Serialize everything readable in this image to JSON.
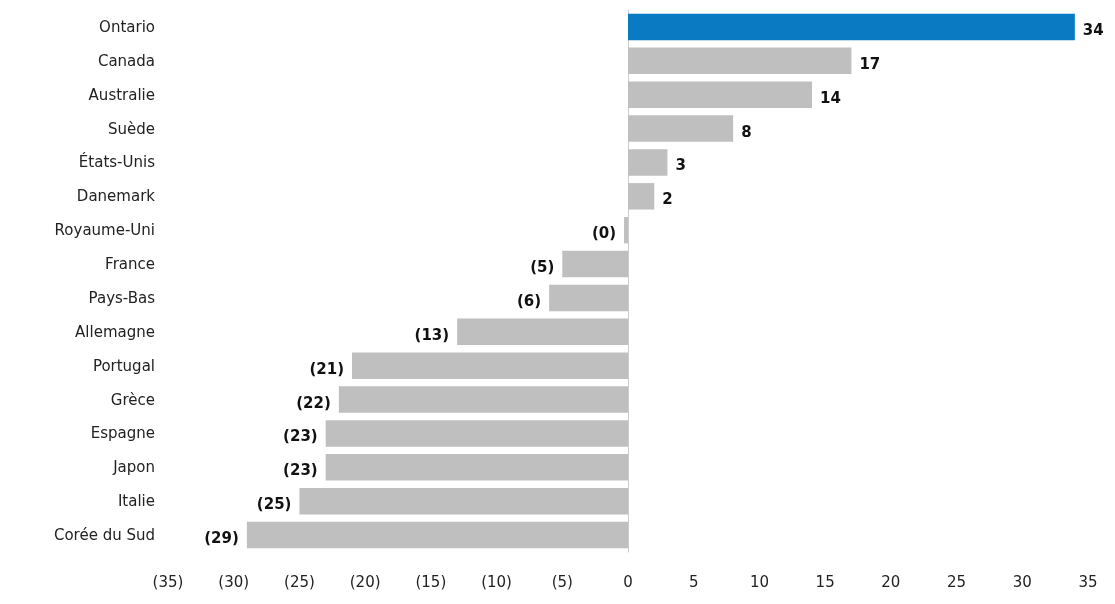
{
  "chart_data": {
    "type": "bar",
    "orientation": "horizontal",
    "categories": [
      "Ontario",
      "Canada",
      "Australie",
      "Suède",
      "États-Unis",
      "Danemark",
      "Royaume-Uni",
      "France",
      "Pays-Bas",
      "Allemagne",
      "Portugal",
      "Grèce",
      "Espagne",
      "Japon",
      "Italie",
      "Corée du Sud"
    ],
    "values": [
      34,
      17,
      14,
      8,
      3,
      2,
      -0.3,
      -5,
      -6,
      -13,
      -21,
      -22,
      -23,
      -23,
      -25,
      -29
    ],
    "colors": [
      "#0a7bc2",
      "#bfbfbf",
      "#bfbfbf",
      "#bfbfbf",
      "#bfbfbf",
      "#bfbfbf",
      "#bfbfbf",
      "#bfbfbf",
      "#bfbfbf",
      "#bfbfbf",
      "#bfbfbf",
      "#bfbfbf",
      "#bfbfbf",
      "#bfbfbf",
      "#bfbfbf",
      "#bfbfbf"
    ],
    "value_labels": [
      "34",
      "17",
      "14",
      "8",
      "3",
      "2",
      "(0)",
      "(5)",
      "(6)",
      "(13)",
      "(21)",
      "(22)",
      "(23)",
      "(23)",
      "(25)",
      "(29)"
    ],
    "xlim": [
      -35,
      35
    ],
    "xticks": [
      {
        "value": -35,
        "label": "(35)"
      },
      {
        "value": -30,
        "label": "(30)"
      },
      {
        "value": -25,
        "label": "(25)"
      },
      {
        "value": -20,
        "label": "(20)"
      },
      {
        "value": -15,
        "label": "(15)"
      },
      {
        "value": -10,
        "label": "(10)"
      },
      {
        "value": -5,
        "label": "(5)"
      },
      0,
      5,
      10,
      15,
      20,
      25,
      30,
      35
    ]
  }
}
